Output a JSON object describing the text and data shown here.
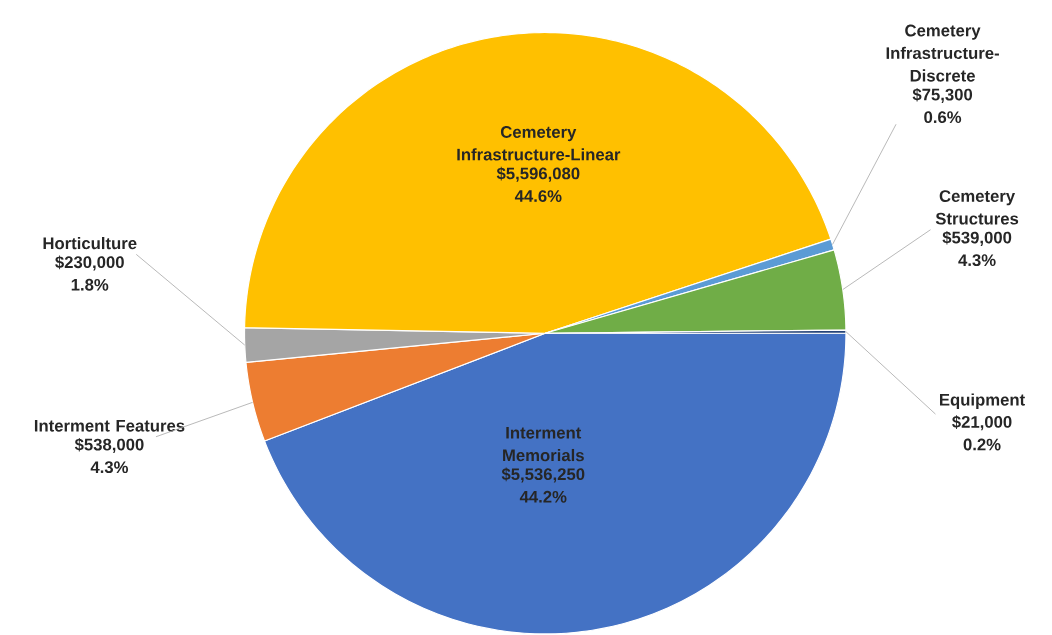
{
  "chart_data": {
    "type": "pie",
    "categories": [
      "Interment Memorials",
      "Interment Features",
      "Horticulture",
      "Cemetery Infrastructure-Linear",
      "Cemetery Infrastructure-Discrete",
      "Cemetery Structures",
      "Equipment"
    ],
    "values": [
      5536250,
      538000,
      230000,
      5596080,
      75300,
      539000,
      21000
    ],
    "colors": [
      "#4472c4",
      "#ed7d31",
      "#a5a5a5",
      "#ffc000",
      "#5b9bd5",
      "#70ad47",
      "#264478"
    ],
    "value_labels": [
      "$5,536,250 44.2%",
      "$538,000 4.3%",
      "$230,000 1.8%",
      "$5,596,080 44.6%",
      "$75,300 0.6%",
      "$539,000 4.3%",
      "$21,000 0.2%"
    ]
  }
}
